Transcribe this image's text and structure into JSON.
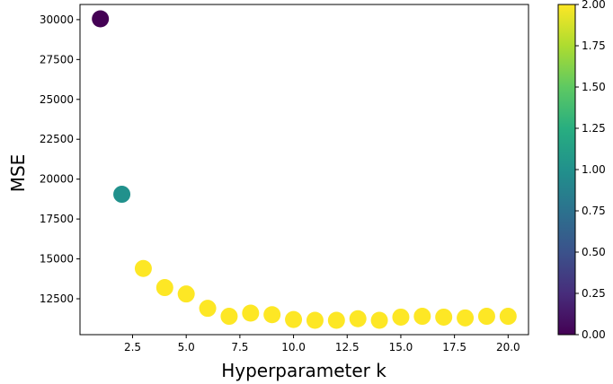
{
  "chart_data": {
    "type": "scatter",
    "xlabel": "Hyperparameter k",
    "ylabel": "MSE",
    "xlim": [
      0.05,
      20.95
    ],
    "ylim": [
      10250,
      30950
    ],
    "x_ticks": [
      2.5,
      5.0,
      7.5,
      10.0,
      12.5,
      15.0,
      17.5,
      20.0
    ],
    "x_tick_labels": [
      "2.5",
      "5.0",
      "7.5",
      "10.0",
      "12.5",
      "15.0",
      "17.5",
      "20.0"
    ],
    "y_ticks": [
      12500,
      15000,
      17500,
      20000,
      22500,
      25000,
      27500,
      30000
    ],
    "y_tick_labels": [
      "12500",
      "15000",
      "17500",
      "20000",
      "22500",
      "25000",
      "27500",
      "30000"
    ],
    "x": [
      1,
      2,
      3,
      4,
      5,
      6,
      7,
      8,
      9,
      10,
      11,
      12,
      13,
      14,
      15,
      16,
      17,
      18,
      19,
      20
    ],
    "y": [
      30050,
      19050,
      14400,
      13200,
      12800,
      11900,
      11400,
      11600,
      11500,
      11200,
      11150,
      11150,
      11250,
      11150,
      11350,
      11400,
      11350,
      11300,
      11400,
      11400
    ],
    "color_values": [
      0,
      1,
      2,
      2,
      2,
      2,
      2,
      2,
      2,
      2,
      2,
      2,
      2,
      2,
      2,
      2,
      2,
      2,
      2,
      2
    ],
    "colorbar": {
      "colormap": "viridis",
      "range": [
        0,
        2
      ],
      "ticks": [
        0,
        0.25,
        0.5,
        0.75,
        1.0,
        1.25,
        1.5,
        1.75,
        2.0
      ],
      "tick_labels": [
        "0.00",
        "0.25",
        "0.50",
        "0.75",
        "1.00",
        "1.25",
        "1.50",
        "1.75",
        "2.00"
      ]
    },
    "colors": {
      "low": "#440154",
      "mid": "#21918c",
      "high": "#fde725"
    },
    "grid": false
  }
}
